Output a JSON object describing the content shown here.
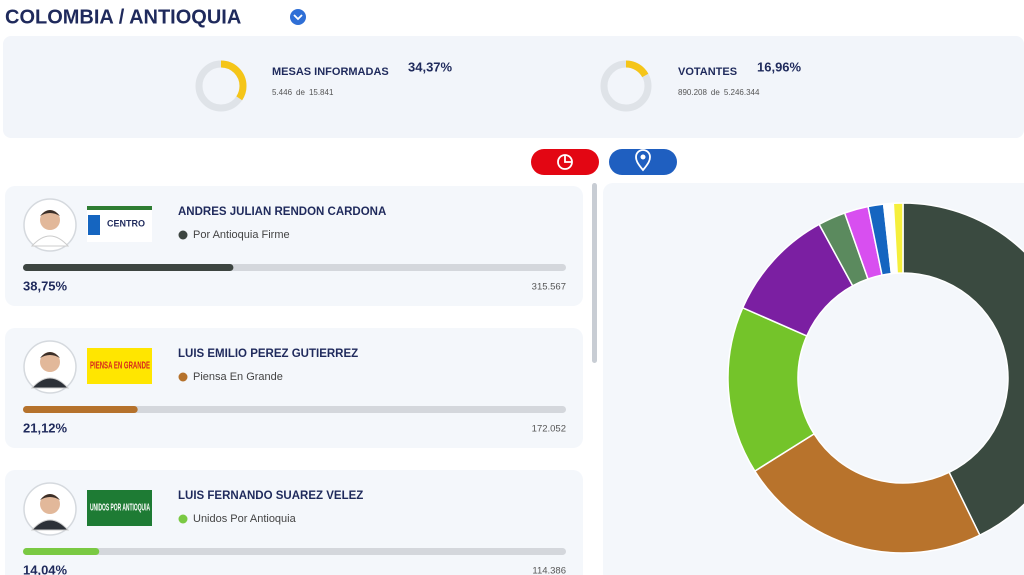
{
  "header": {
    "title": "COLOMBIA / ANTIOQUIA"
  },
  "stats": [
    {
      "label": "MESAS INFORMADAS",
      "percent": 34.37,
      "percent_label": "34,37%",
      "counted": "5.446",
      "of": "de",
      "total": "15.841"
    },
    {
      "label": "VOTANTES",
      "percent": 16.96,
      "percent_label": "16,96%",
      "counted": "890.208",
      "of": "de",
      "total": "5.246.344"
    }
  ],
  "candidates": [
    {
      "name": "ANDRES JULIAN RENDON CARDONA",
      "party": "Por Antioquia Firme",
      "logo": "CENTRO",
      "color": "#3d4541",
      "percent": 38.75,
      "percent_label": "38,75%",
      "votes": "315.567"
    },
    {
      "name": "LUIS EMILIO PEREZ GUTIERREZ",
      "party": "Piensa En Grande",
      "logo": "PIENSA EN GRANDE",
      "color": "#b5722c",
      "percent": 21.12,
      "percent_label": "21,12%",
      "votes": "172.052"
    },
    {
      "name": "LUIS FERNANDO SUAREZ VELEZ",
      "party": "Unidos Por Antioquia",
      "logo": "UNIDOS POR ANTIOQUIA",
      "color": "#7ac943",
      "percent": 14.04,
      "percent_label": "14,04%",
      "votes": "114.386"
    }
  ],
  "donut": {
    "values": [
      38.75,
      21.12,
      14.04,
      9.5,
      2.3,
      2.0,
      1.3,
      0.8,
      0.8
    ],
    "colors": [
      "#3a4a40",
      "#b8732c",
      "#74c42a",
      "#7b1fa2",
      "#5b8a5e",
      "#d84ff0",
      "#1565c0",
      "#ffffff",
      "#f5ef3c"
    ]
  }
}
